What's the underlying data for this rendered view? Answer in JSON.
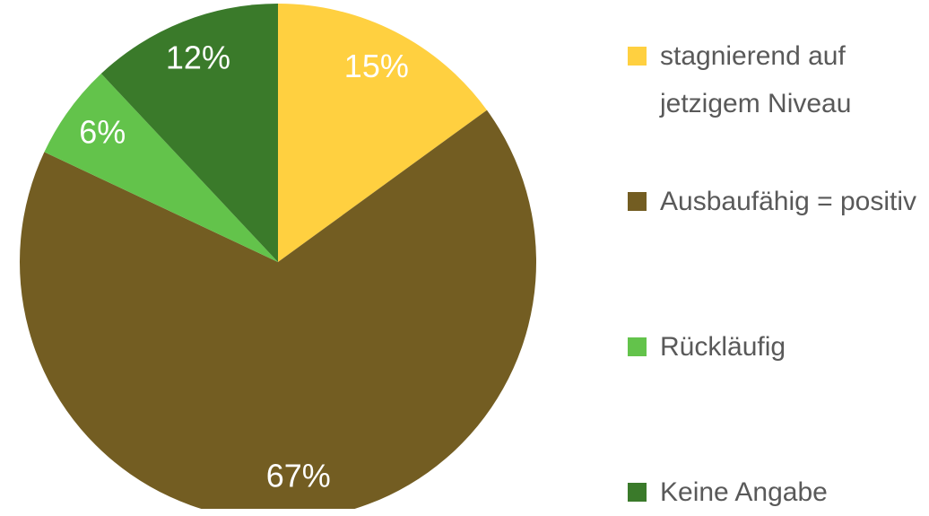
{
  "chart_data": {
    "type": "pie",
    "categories": [
      "stagnierend auf jetzigem Niveau",
      "Ausbaufähig = positiv",
      "Rückläufig",
      "Keine Angabe"
    ],
    "values": [
      15,
      67,
      6,
      12
    ],
    "value_labels": [
      "15%",
      "67%",
      "6%",
      "12%"
    ],
    "colors": [
      "#FFD040",
      "#735D22",
      "#63C34B",
      "#3A7A2A"
    ],
    "legend": "right"
  }
}
